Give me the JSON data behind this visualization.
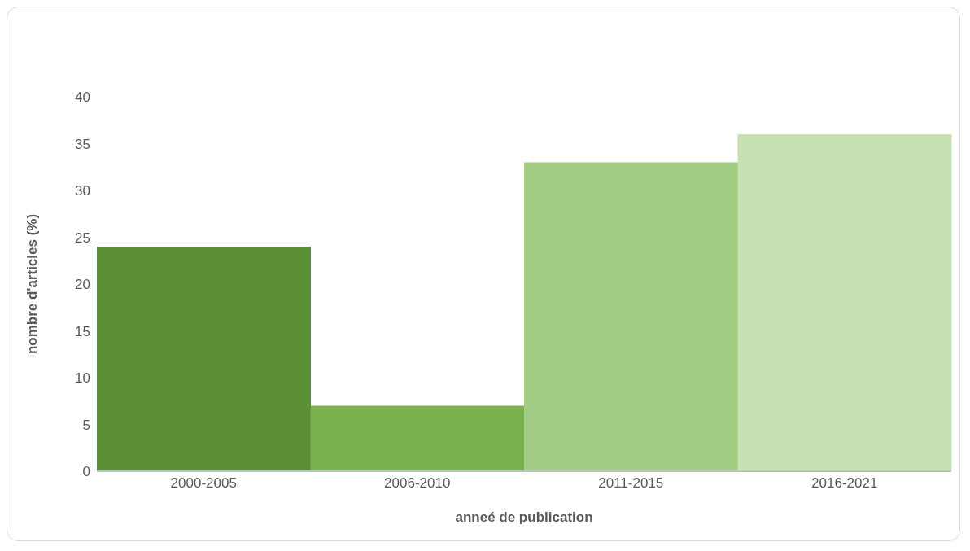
{
  "chart_data": {
    "type": "bar",
    "xlabel": "anneé de publication",
    "ylabel": "nombre d'articles (%)",
    "categories": [
      "2000-2005",
      "2006-2010",
      "2011-2015",
      "2016-2021"
    ],
    "values": [
      24,
      7,
      33,
      36
    ],
    "colors": [
      "#5a8f35",
      "#7ab24e",
      "#a3cc85",
      "#c6e0b2"
    ],
    "ylim": [
      0,
      40
    ],
    "yticks": [
      0,
      5,
      10,
      15,
      20,
      25,
      30,
      35,
      40
    ],
    "grid": false,
    "legend": false
  }
}
